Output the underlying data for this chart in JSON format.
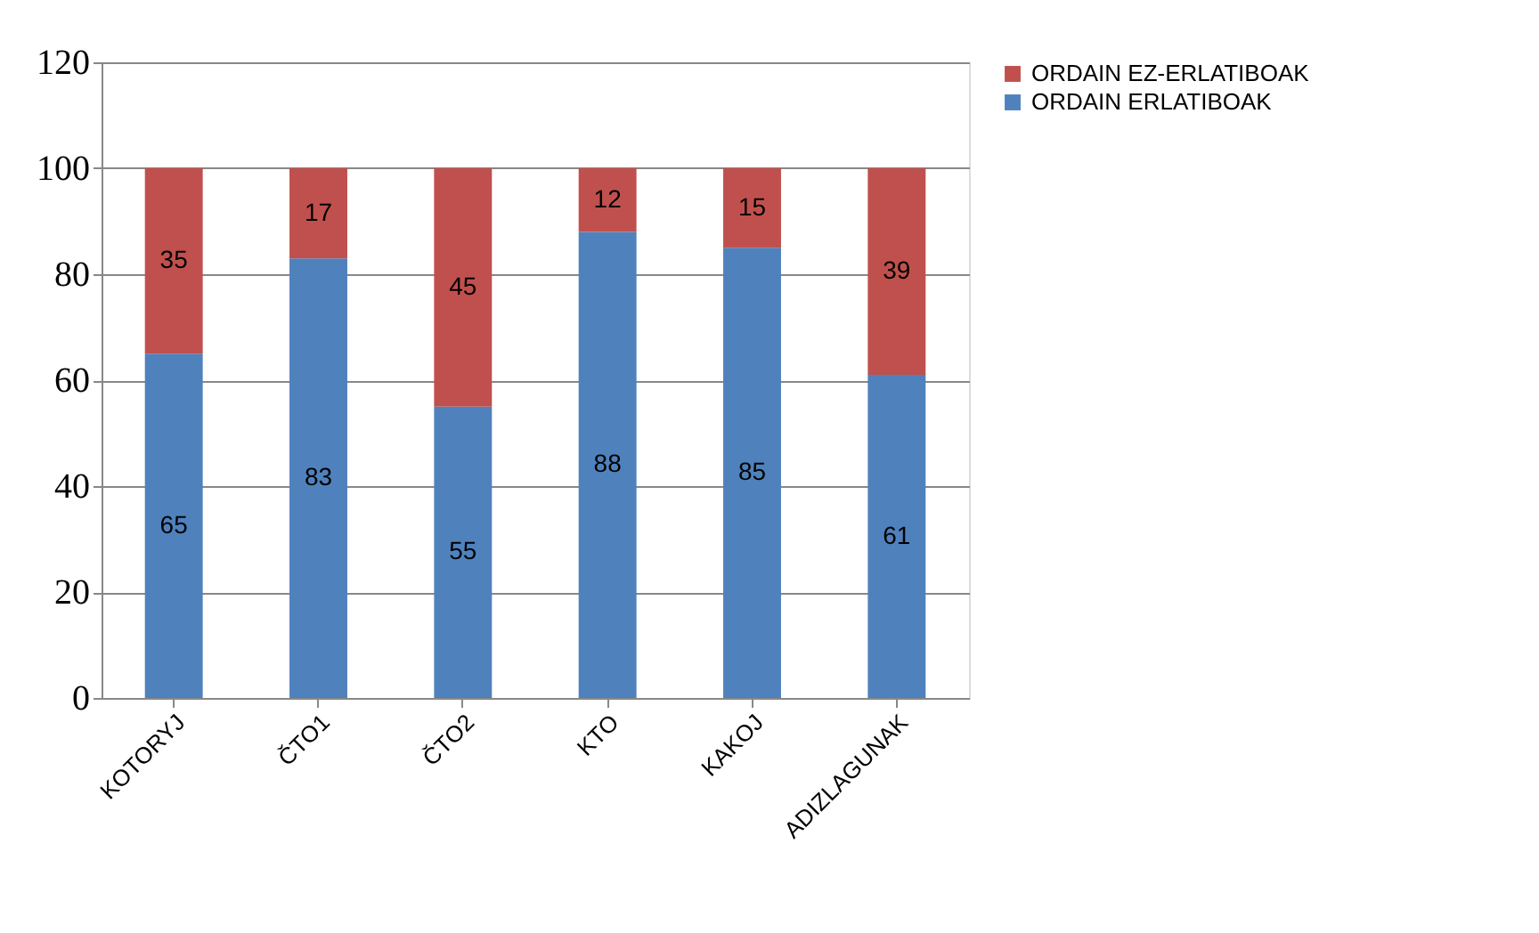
{
  "chart_data": {
    "type": "bar",
    "stacked": true,
    "categories": [
      "KOTORYJ",
      "ČTO1",
      "ČTO2",
      "KTO",
      "KAKOJ",
      "ADIZLAGUNAK"
    ],
    "series": [
      {
        "name": "ORDAIN ERLATIBOAK",
        "color": "#4f81bd",
        "values": [
          65,
          83,
          55,
          88,
          85,
          61
        ]
      },
      {
        "name": "ORDAIN EZ-ERLATIBOAK",
        "color": "#c0504d",
        "values": [
          35,
          17,
          45,
          12,
          15,
          39
        ]
      }
    ],
    "ylim": [
      0,
      120
    ],
    "yticks": [
      0,
      20,
      40,
      60,
      80,
      100,
      120
    ],
    "grid": "y",
    "legend": "right",
    "data_labels": true
  }
}
